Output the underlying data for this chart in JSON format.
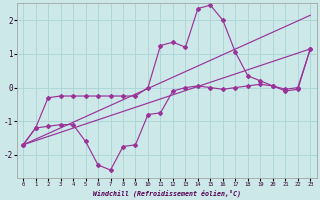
{
  "xlabel": "Windchill (Refroidissement éolien,°C)",
  "bg_color": "#cce8e8",
  "line_color": "#993399",
  "grid_color": "#aad4d4",
  "xlim": [
    -0.5,
    23.5
  ],
  "ylim": [
    -2.7,
    2.5
  ],
  "yticks": [
    -2,
    -1,
    0,
    1,
    2
  ],
  "xticks": [
    0,
    1,
    2,
    3,
    4,
    5,
    6,
    7,
    8,
    9,
    10,
    11,
    12,
    13,
    14,
    15,
    16,
    17,
    18,
    19,
    20,
    21,
    22,
    23
  ],
  "line1_x": [
    0,
    1,
    2,
    3,
    4,
    5,
    6,
    7,
    8,
    9,
    10,
    11,
    12,
    13,
    14,
    15,
    16,
    17,
    18,
    19,
    20,
    21,
    22,
    23
  ],
  "line1_y": [
    -1.7,
    -1.2,
    -1.15,
    -1.1,
    -1.1,
    -1.6,
    -2.3,
    -2.45,
    -1.75,
    -1.7,
    -0.8,
    -0.75,
    -0.1,
    0.0,
    0.05,
    0.0,
    -0.05,
    0.0,
    0.05,
    0.1,
    0.05,
    -0.05,
    -0.0,
    1.15
  ],
  "line2_x": [
    0,
    1,
    2,
    3,
    4,
    5,
    6,
    7,
    8,
    9,
    10,
    11,
    12,
    13,
    14,
    15,
    16,
    17,
    18,
    19,
    20,
    21,
    22,
    23
  ],
  "line2_y": [
    -1.7,
    -1.2,
    -0.3,
    -0.25,
    -0.25,
    -0.25,
    -0.25,
    -0.25,
    -0.25,
    -0.25,
    0.0,
    1.25,
    1.35,
    1.2,
    2.35,
    2.45,
    2.0,
    1.05,
    0.35,
    0.2,
    0.05,
    -0.1,
    -0.05,
    1.15
  ],
  "line3_x": [
    0,
    23
  ],
  "line3_y": [
    -1.7,
    2.15
  ],
  "line4_x": [
    0,
    23
  ],
  "line4_y": [
    -1.7,
    1.15
  ]
}
